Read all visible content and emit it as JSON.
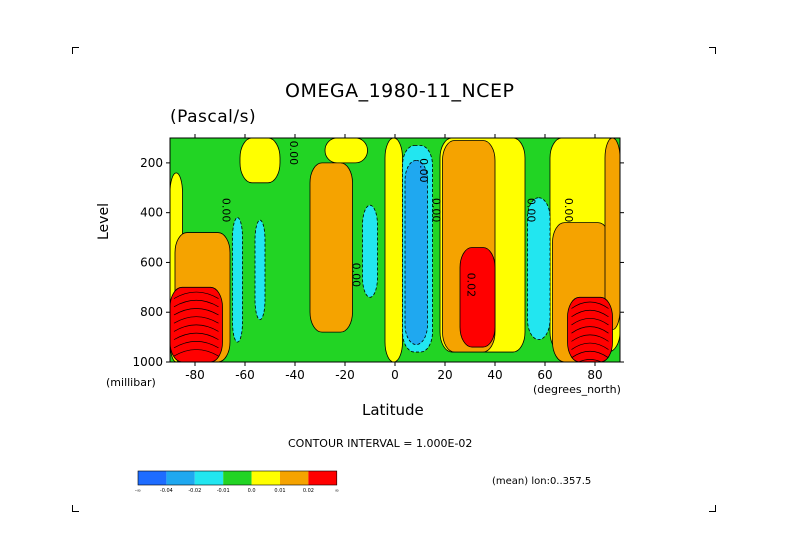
{
  "chart_data": {
    "type": "heatmap",
    "title": "OMEGA_1980-11_NCEP",
    "units": "(Pascal/s)",
    "xlabel": "Latitude",
    "ylabel": "Level",
    "x_unit": "(degrees_north)",
    "y_unit": "(millibar)",
    "xlim": [
      -90,
      90
    ],
    "ylim": [
      1000,
      100
    ],
    "x_ticks": [
      "-80",
      "-60",
      "-40",
      "-20",
      "0",
      "20",
      "40",
      "60",
      "80"
    ],
    "x_tick_values": [
      -80,
      -60,
      -40,
      -20,
      0,
      20,
      40,
      60,
      80
    ],
    "y_ticks": [
      "200",
      "400",
      "600",
      "800",
      "1000"
    ],
    "y_tick_values": [
      200,
      400,
      600,
      800,
      1000
    ],
    "contour_interval_text": "CONTOUR INTERVAL = 1.000E-02",
    "mean_text": "(mean) lon:0..357.5",
    "colorbar": {
      "colors": [
        "#1e6cff",
        "#1fa8f0",
        "#22e6f0",
        "#22d424",
        "#ffff00",
        "#f5a300",
        "#ff0000"
      ],
      "labels": [
        "-∞",
        "-0.04",
        "-0.02",
        "-0.01",
        "0.0",
        "0.01",
        "0.02",
        "∞"
      ]
    },
    "contour_labels": [
      {
        "text": "0.00",
        "x": -69,
        "p": 390
      },
      {
        "text": "0.00",
        "x": -42,
        "p": 160
      },
      {
        "text": "0.00",
        "x": -17,
        "p": 650
      },
      {
        "text": "0.00",
        "x": 10,
        "p": 230
      },
      {
        "text": "0.00",
        "x": 15,
        "p": 390
      },
      {
        "text": "0.02",
        "x": 29,
        "p": 690
      },
      {
        "text": "0.00",
        "x": 53,
        "p": 390
      },
      {
        "text": "0.00",
        "x": 68,
        "p": 390
      }
    ],
    "regions": [
      {
        "level": 0.0,
        "x": [
          -90,
          -85
        ],
        "p": [
          240,
          1000
        ]
      },
      {
        "level": 0.0,
        "x": [
          -62,
          -46
        ],
        "p": [
          100,
          280
        ]
      },
      {
        "level": 0.0,
        "x": [
          -28,
          -11
        ],
        "p": [
          100,
          200
        ]
      },
      {
        "level": 0.0,
        "x": [
          -4,
          3
        ],
        "p": [
          100,
          1000
        ]
      },
      {
        "level": 0.0,
        "x": [
          18,
          52
        ],
        "p": [
          100,
          960
        ]
      },
      {
        "level": 0.0,
        "x": [
          62,
          90
        ],
        "p": [
          100,
          960
        ]
      },
      {
        "level": 0.01,
        "x": [
          -88,
          -66
        ],
        "p": [
          480,
          1000
        ]
      },
      {
        "level": 0.01,
        "x": [
          -34,
          -17
        ],
        "p": [
          200,
          880
        ]
      },
      {
        "level": 0.01,
        "x": [
          19,
          40
        ],
        "p": [
          110,
          960
        ]
      },
      {
        "level": 0.01,
        "x": [
          63,
          86
        ],
        "p": [
          440,
          1000
        ]
      },
      {
        "level": 0.01,
        "x": [
          84,
          90
        ],
        "p": [
          100,
          870
        ]
      },
      {
        "level": 0.02,
        "x": [
          -90,
          -69
        ],
        "p": [
          700,
          1000
        ]
      },
      {
        "level": 0.02,
        "x": [
          26,
          40
        ],
        "p": [
          540,
          940
        ]
      },
      {
        "level": 0.02,
        "x": [
          69,
          87
        ],
        "p": [
          740,
          1000
        ]
      },
      {
        "level": -0.01,
        "x": [
          -65,
          -61
        ],
        "p": [
          420,
          920
        ]
      },
      {
        "level": -0.01,
        "x": [
          -56,
          -52
        ],
        "p": [
          430,
          830
        ]
      },
      {
        "level": -0.01,
        "x": [
          -13,
          -7
        ],
        "p": [
          370,
          740
        ]
      },
      {
        "level": -0.01,
        "x": [
          3,
          15
        ],
        "p": [
          130,
          960
        ]
      },
      {
        "level": -0.01,
        "x": [
          53,
          62
        ],
        "p": [
          340,
          910
        ]
      },
      {
        "level": -0.02,
        "x": [
          4,
          13
        ],
        "p": [
          190,
          930
        ]
      }
    ]
  }
}
